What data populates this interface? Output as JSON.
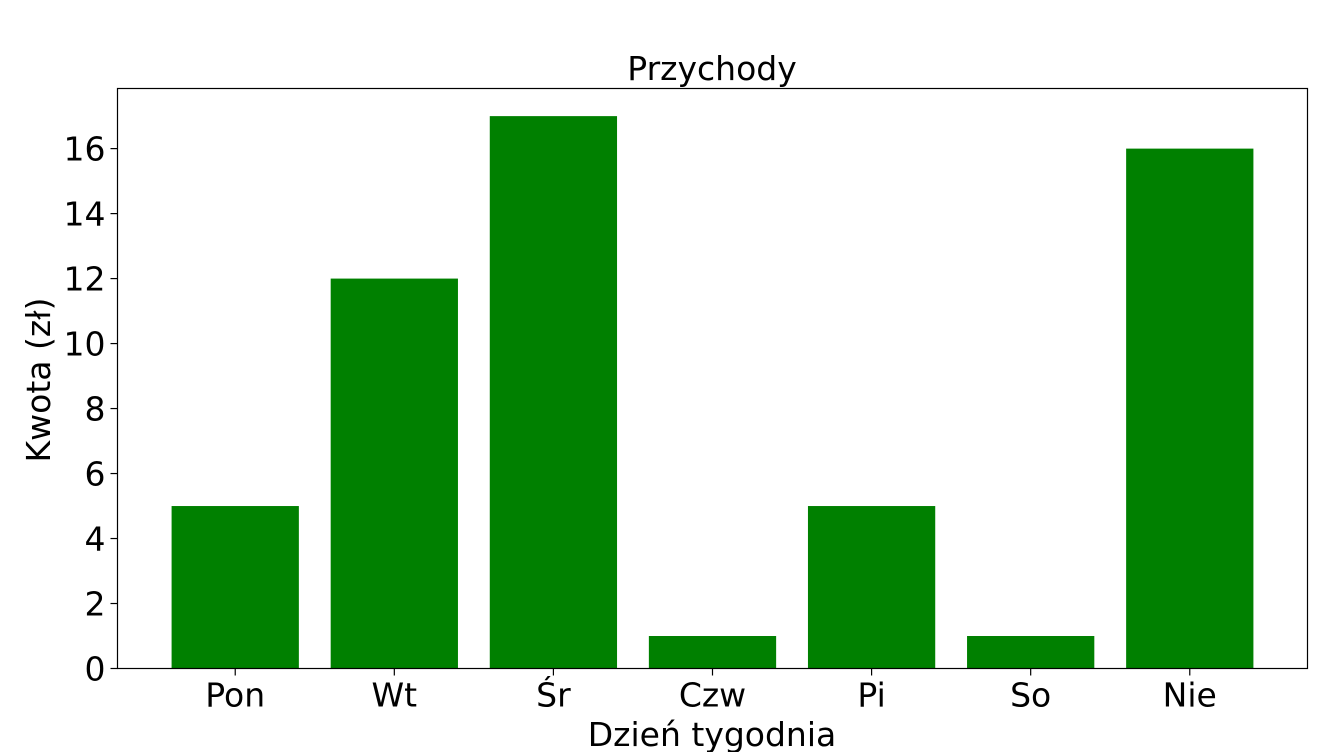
{
  "chart_data": {
    "type": "bar",
    "title": "Przychody",
    "xlabel": "Dzień tygodnia",
    "ylabel": "Kwota (zł)",
    "categories": [
      "Pon",
      "Wt",
      "Śr",
      "Czw",
      "Pi",
      "So",
      "Nie"
    ],
    "values": [
      5,
      12,
      17,
      1,
      5,
      1,
      16
    ],
    "ylim": [
      0,
      17.85
    ],
    "yticks": [
      0,
      2,
      4,
      6,
      8,
      10,
      12,
      14,
      16
    ],
    "bar_color": "#008000",
    "grid": false,
    "legend": "none"
  }
}
